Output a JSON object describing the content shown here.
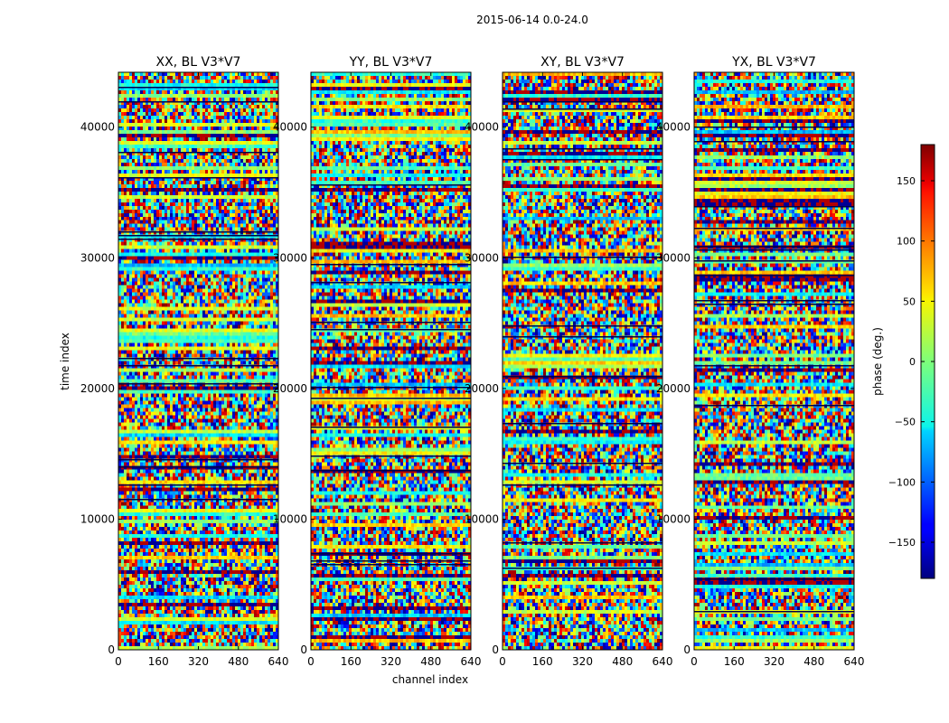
{
  "figure": {
    "suptitle": "2015-06-14 0.0-24.0"
  },
  "chart_data": {
    "type": "heatmap",
    "xlabel": "channel index",
    "ylabel": "time index",
    "x_ticks": [
      0,
      160,
      320,
      480,
      640
    ],
    "y_ticks": [
      0,
      10000,
      20000,
      30000,
      40000
    ],
    "xlim": [
      0,
      640
    ],
    "ylim": [
      0,
      44200
    ],
    "colormap": "jet",
    "panels": [
      {
        "title": "XX, BL V3*V7"
      },
      {
        "title": "YY, BL V3*V7"
      },
      {
        "title": "XY, BL V3*V7"
      },
      {
        "title": "YX, BL V3*V7"
      }
    ],
    "colorbar": {
      "label": "phase (deg.)",
      "ticks": [
        150,
        100,
        50,
        0,
        -50,
        -100,
        -150
      ],
      "range": [
        -180,
        180
      ]
    }
  }
}
